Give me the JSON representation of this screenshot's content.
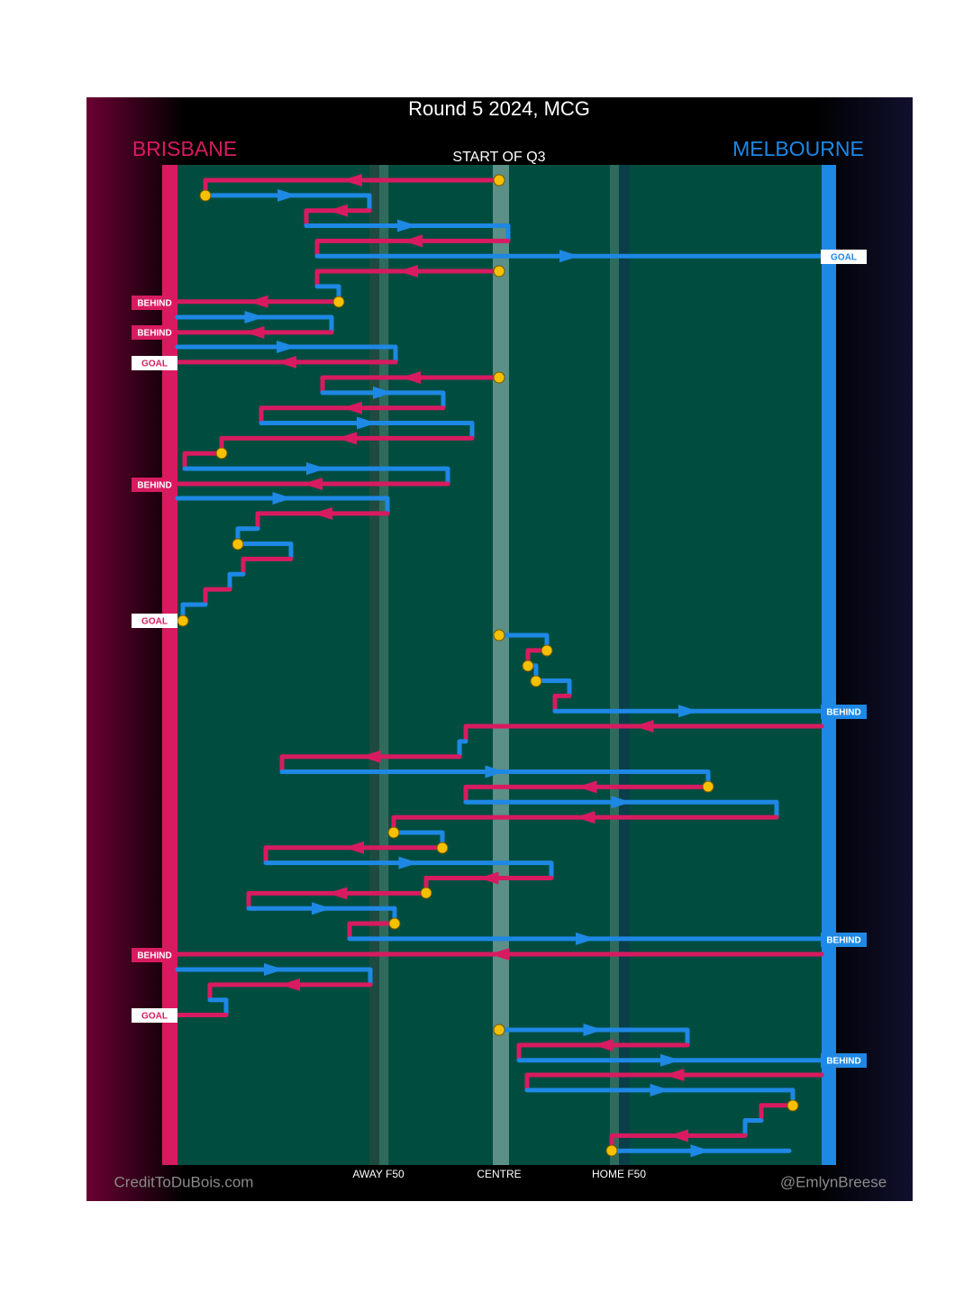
{
  "title": "Round 5 2024, MCG",
  "teams": {
    "home": "BRISBANE",
    "away": "MELBOURNE"
  },
  "period_label": "START OF Q3",
  "left_outcomes": [
    "BEHIND",
    "BEHIND",
    "GOAL",
    "BEHIND",
    "GOAL",
    "BEHIND",
    "GOAL"
  ],
  "right_outcomes": [
    "GOAL",
    "BEHIND",
    "BEHIND",
    "BEHIND"
  ],
  "zones": [
    "AWAY F50",
    "CENTRE",
    "HOME F50"
  ],
  "credits": {
    "left": "CreditToDuBois.com",
    "right": "@EmlynBreese"
  }
}
